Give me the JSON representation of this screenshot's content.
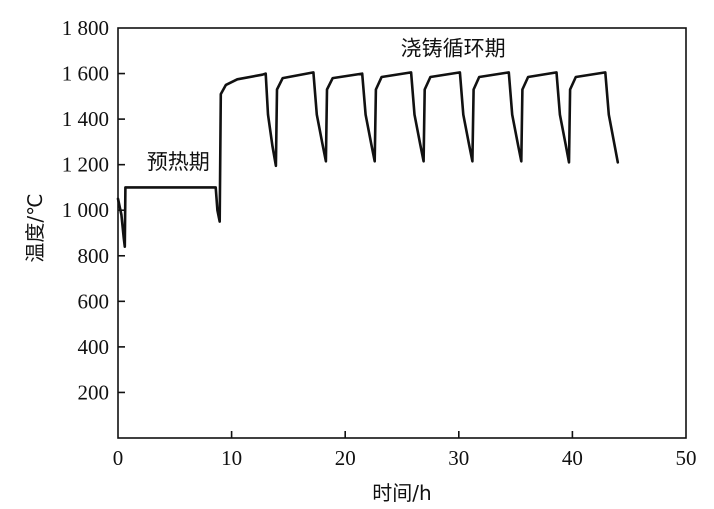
{
  "chart_data": {
    "type": "line",
    "title": "",
    "xlabel": "时间/h",
    "ylabel": "温度/℃",
    "xlim": [
      0,
      50
    ],
    "ylim": [
      0,
      1800
    ],
    "x_ticks": [
      "0",
      "10",
      "20",
      "30",
      "40",
      "50"
    ],
    "y_ticks": [
      "200",
      "400",
      "600",
      "800",
      "1 000",
      "1 200",
      "1 400",
      "1 600",
      "1 800"
    ],
    "grid": false,
    "legend": "none",
    "line_color": "#111111",
    "annotations": [
      {
        "text": "预热期",
        "x": 5.3,
        "y": 1180
      },
      {
        "text": "浇铸循环期",
        "x": 29.5,
        "y": 1680
      }
    ],
    "series": [
      {
        "points": [
          [
            0,
            1050
          ],
          [
            0.3,
            980
          ],
          [
            0.5,
            880
          ],
          [
            0.6,
            840
          ],
          [
            0.65,
            1100
          ],
          [
            8.6,
            1100
          ],
          [
            8.75,
            1000
          ],
          [
            8.95,
            950
          ],
          [
            9.05,
            1510
          ],
          [
            9.5,
            1550
          ],
          [
            10.5,
            1575
          ],
          [
            12.7,
            1595
          ],
          [
            13.0,
            1600
          ],
          [
            13.2,
            1420
          ],
          [
            13.6,
            1280
          ],
          [
            13.9,
            1195
          ],
          [
            14.0,
            1530
          ],
          [
            14.5,
            1580
          ],
          [
            17.2,
            1605
          ],
          [
            17.5,
            1420
          ],
          [
            18.0,
            1290
          ],
          [
            18.3,
            1215
          ],
          [
            18.4,
            1530
          ],
          [
            18.9,
            1580
          ],
          [
            21.5,
            1600
          ],
          [
            21.8,
            1420
          ],
          [
            22.3,
            1290
          ],
          [
            22.6,
            1215
          ],
          [
            22.7,
            1530
          ],
          [
            23.2,
            1585
          ],
          [
            25.8,
            1605
          ],
          [
            26.1,
            1420
          ],
          [
            26.6,
            1290
          ],
          [
            26.9,
            1215
          ],
          [
            27.0,
            1530
          ],
          [
            27.5,
            1585
          ],
          [
            30.1,
            1605
          ],
          [
            30.4,
            1420
          ],
          [
            30.9,
            1290
          ],
          [
            31.2,
            1215
          ],
          [
            31.3,
            1530
          ],
          [
            31.8,
            1585
          ],
          [
            34.4,
            1605
          ],
          [
            34.7,
            1420
          ],
          [
            35.2,
            1290
          ],
          [
            35.5,
            1215
          ],
          [
            35.6,
            1530
          ],
          [
            36.1,
            1585
          ],
          [
            38.6,
            1605
          ],
          [
            38.9,
            1420
          ],
          [
            39.4,
            1290
          ],
          [
            39.7,
            1210
          ],
          [
            39.8,
            1530
          ],
          [
            40.3,
            1585
          ],
          [
            42.9,
            1605
          ],
          [
            43.2,
            1420
          ],
          [
            43.7,
            1290
          ],
          [
            44.0,
            1210
          ]
        ]
      }
    ]
  }
}
